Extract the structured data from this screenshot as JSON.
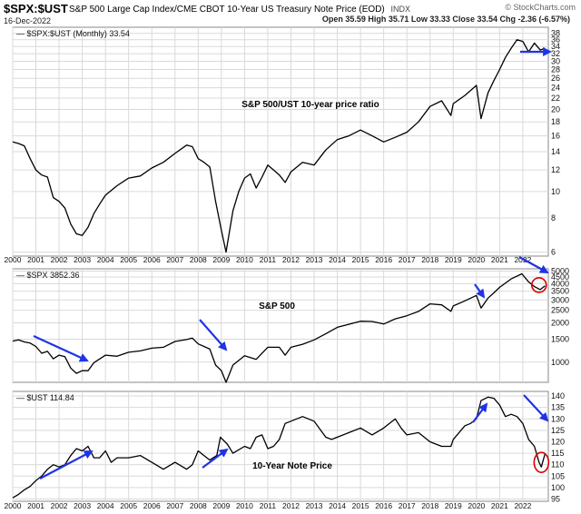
{
  "header": {
    "symbol": "$SPX:$UST",
    "description": "S&P 500 Large Cap Index/CME CBOT 10-Year US Treasury Note Price (EOD)",
    "exchange": "INDX",
    "date": "16-Dec-2022",
    "ohlc": "Open 35.59  High 35.71  Low 33.33  Close 33.54  Chg -2.36 (-6.57%)",
    "chg_color": "#cc0000",
    "watermark": "© StockCharts.com"
  },
  "accent_colors": {
    "arrow": "#1f33e6",
    "circle": "#d40000",
    "line": "#000000",
    "grid": "#d9d9d9"
  },
  "chart_data": [
    {
      "type": "line",
      "legend": "$SPX:$UST (Monthly) 33.54",
      "annotation": "S&P 500/UST 10-year price ratio",
      "scale": "log",
      "ylim": [
        5.8,
        40
      ],
      "yticks": [
        6,
        8,
        10,
        12,
        14,
        16,
        18,
        20,
        22,
        24,
        26,
        28,
        30,
        32,
        34,
        36,
        38
      ],
      "grid": true,
      "x": [
        2000.0,
        2000.25,
        2000.5,
        2000.75,
        2001.0,
        2001.25,
        2001.5,
        2001.75,
        2002.0,
        2002.25,
        2002.5,
        2002.75,
        2003.0,
        2003.25,
        2003.5,
        2003.75,
        2004.0,
        2004.5,
        2005.0,
        2005.5,
        2006.0,
        2006.5,
        2007.0,
        2007.5,
        2007.75,
        2008.0,
        2008.25,
        2008.5,
        2008.75,
        2009.0,
        2009.2,
        2009.5,
        2009.75,
        2010.0,
        2010.25,
        2010.5,
        2010.75,
        2011.0,
        2011.25,
        2011.5,
        2011.75,
        2012.0,
        2012.5,
        2013.0,
        2013.5,
        2014.0,
        2014.5,
        2015.0,
        2015.5,
        2016.0,
        2016.5,
        2017.0,
        2017.5,
        2018.0,
        2018.5,
        2018.9,
        2019.0,
        2019.5,
        2020.0,
        2020.2,
        2020.5,
        2020.75,
        2021.0,
        2021.25,
        2021.5,
        2021.75,
        2022.0,
        2022.25,
        2022.5,
        2022.75,
        2022.96
      ],
      "values": [
        15.2,
        15.0,
        14.7,
        13.2,
        12.0,
        11.5,
        11.3,
        9.5,
        9.2,
        8.7,
        7.6,
        7.0,
        6.9,
        7.4,
        8.3,
        9.0,
        9.7,
        10.5,
        11.2,
        11.4,
        12.2,
        12.8,
        13.8,
        14.8,
        14.6,
        13.2,
        12.8,
        12.3,
        9.2,
        7.2,
        6.0,
        8.5,
        10.0,
        11.2,
        11.6,
        10.3,
        11.3,
        12.5,
        12.0,
        11.5,
        10.8,
        11.8,
        12.8,
        12.5,
        14.2,
        15.5,
        16.0,
        16.8,
        16.0,
        15.2,
        15.8,
        16.5,
        18.0,
        20.5,
        21.5,
        19.0,
        21.0,
        22.5,
        24.5,
        18.5,
        23.0,
        25.5,
        28.0,
        31.0,
        33.5,
        36.0,
        35.5,
        32.5,
        35.0,
        33.0,
        33.54
      ],
      "marks": {
        "arrow_level": 30
      }
    },
    {
      "type": "line",
      "legend": "$SPX 3852.36",
      "annotation": "S&P 500",
      "scale": "log",
      "ylim": [
        700,
        5200
      ],
      "yticks": [
        1000,
        1500,
        2000,
        2500,
        3000,
        3500,
        4000,
        4500,
        5000
      ],
      "grid": true,
      "x": [
        2000.0,
        2000.25,
        2000.5,
        2000.75,
        2001.0,
        2001.25,
        2001.5,
        2001.75,
        2002.0,
        2002.25,
        2002.5,
        2002.75,
        2003.0,
        2003.25,
        2003.5,
        2004.0,
        2004.5,
        2005.0,
        2005.5,
        2006.0,
        2006.5,
        2007.0,
        2007.5,
        2007.75,
        2008.0,
        2008.25,
        2008.5,
        2008.75,
        2009.0,
        2009.2,
        2009.5,
        2010.0,
        2010.5,
        2011.0,
        2011.5,
        2011.75,
        2012.0,
        2012.5,
        2013.0,
        2013.5,
        2014.0,
        2015.0,
        2015.5,
        2016.0,
        2016.5,
        2017.0,
        2017.5,
        2018.0,
        2018.5,
        2018.9,
        2019.0,
        2019.5,
        2020.0,
        2020.2,
        2020.5,
        2020.75,
        2021.0,
        2021.5,
        2021.96,
        2022.25,
        2022.5,
        2022.75,
        2022.96
      ],
      "values": [
        1450,
        1480,
        1430,
        1400,
        1320,
        1170,
        1210,
        1060,
        1130,
        1100,
        900,
        820,
        860,
        860,
        990,
        1130,
        1110,
        1190,
        1220,
        1280,
        1300,
        1440,
        1490,
        1530,
        1380,
        1320,
        1260,
        950,
        860,
        700,
        950,
        1120,
        1050,
        1300,
        1300,
        1130,
        1300,
        1370,
        1480,
        1650,
        1850,
        2060,
        2050,
        1960,
        2150,
        2270,
        2450,
        2800,
        2750,
        2450,
        2700,
        2950,
        3250,
        2600,
        3100,
        3400,
        3750,
        4350,
        4760,
        4130,
        3800,
        3600,
        3852.36
      ],
      "marks": {
        "circle_x": 2022.7,
        "circle_y": 3900
      }
    },
    {
      "type": "line",
      "legend": "$UST 114.84",
      "annotation": "10-Year Note Price",
      "scale": "linear",
      "ylim": [
        94,
        142
      ],
      "yticks": [
        95,
        100,
        105,
        110,
        115,
        120,
        125,
        130,
        135,
        140
      ],
      "grid": true,
      "x": [
        2000.0,
        2000.25,
        2000.5,
        2000.75,
        2001.0,
        2001.25,
        2001.5,
        2001.75,
        2002.0,
        2002.25,
        2002.5,
        2002.75,
        2003.0,
        2003.25,
        2003.5,
        2003.75,
        2004.0,
        2004.25,
        2004.5,
        2005.0,
        2005.5,
        2006.0,
        2006.5,
        2007.0,
        2007.5,
        2007.75,
        2008.0,
        2008.25,
        2008.5,
        2008.8,
        2008.96,
        2009.25,
        2009.5,
        2010.0,
        2010.25,
        2010.5,
        2010.75,
        2011.0,
        2011.25,
        2011.5,
        2011.75,
        2012.0,
        2012.5,
        2013.0,
        2013.5,
        2013.75,
        2014.0,
        2014.5,
        2015.0,
        2015.5,
        2016.0,
        2016.5,
        2016.75,
        2017.0,
        2017.5,
        2018.0,
        2018.5,
        2018.9,
        2019.0,
        2019.5,
        2019.75,
        2020.0,
        2020.2,
        2020.5,
        2020.75,
        2021.0,
        2021.25,
        2021.5,
        2021.75,
        2022.0,
        2022.25,
        2022.5,
        2022.7,
        2022.8,
        2022.96
      ],
      "values": [
        95.5,
        97.0,
        99.0,
        100.5,
        103.0,
        105.0,
        108.0,
        110.0,
        109.0,
        110.0,
        114.0,
        117.0,
        116.0,
        118.0,
        113.0,
        113.0,
        116.0,
        111.0,
        113.0,
        113.0,
        114.0,
        111.0,
        108.0,
        111.0,
        108.0,
        110.0,
        116.0,
        114.0,
        112.0,
        114.0,
        122.0,
        119.0,
        115.0,
        118.0,
        117.0,
        122.0,
        123.0,
        117.0,
        118.0,
        121.0,
        128.0,
        129.0,
        131.0,
        129.0,
        122.0,
        121.0,
        122.0,
        124.0,
        126.0,
        123.0,
        126.0,
        130.0,
        126.0,
        123.0,
        124.0,
        120.0,
        118.0,
        118.0,
        121.0,
        127.0,
        128.0,
        130.0,
        138.0,
        139.5,
        139.0,
        136.0,
        131.0,
        132.0,
        131.0,
        128.0,
        121.0,
        118.0,
        111.0,
        109.0,
        114.84
      ],
      "marks": {
        "circle_x": 2022.8,
        "circle_y": 111
      }
    }
  ],
  "x_axis": {
    "range": [
      2000.0,
      2023.1
    ],
    "ticks": [
      2000,
      2001,
      2002,
      2003,
      2004,
      2005,
      2006,
      2007,
      2008,
      2009,
      2010,
      2011,
      2012,
      2013,
      2014,
      2015,
      2016,
      2017,
      2018,
      2019,
      2020,
      2021,
      2022
    ]
  }
}
